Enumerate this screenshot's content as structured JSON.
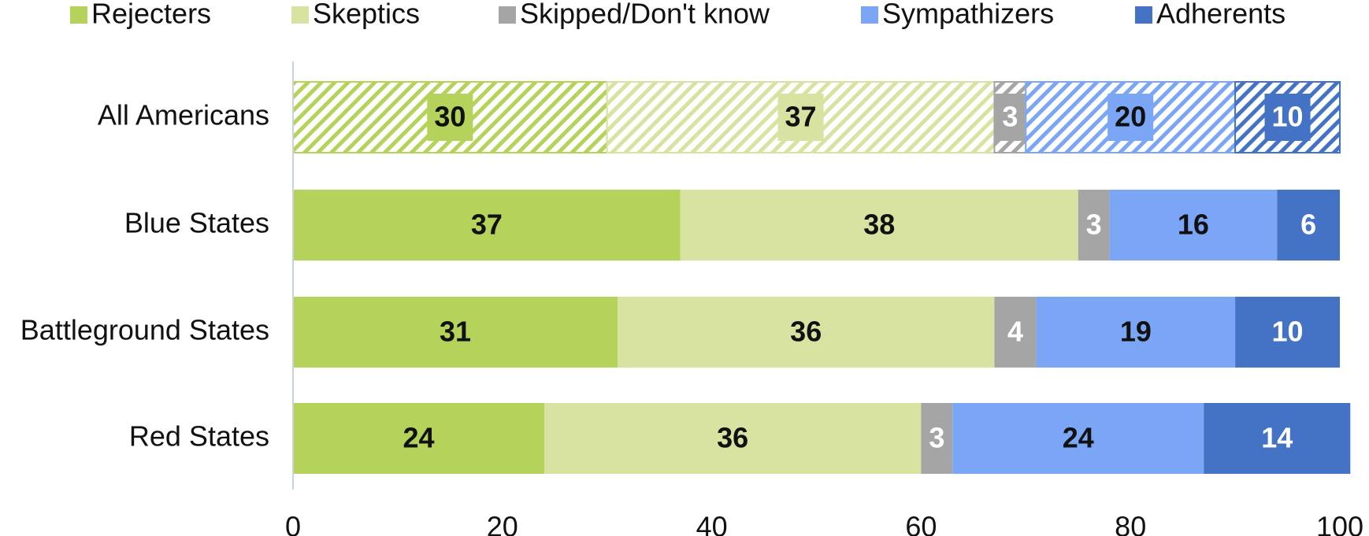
{
  "chart_data": {
    "type": "stacked_bar_horizontal",
    "categories": [
      "All Americans",
      "Blue States",
      "Battleground States",
      "Red States"
    ],
    "hatched": [
      true,
      false,
      false,
      false
    ],
    "series": [
      {
        "name": "Rejecters",
        "color": "#b5d25a",
        "label_color": "#111111",
        "values": [
          30,
          37,
          31,
          24
        ]
      },
      {
        "name": "Skeptics",
        "color": "#d9e3a1",
        "label_color": "#111111",
        "values": [
          37,
          38,
          36,
          36
        ]
      },
      {
        "name": "Skipped/Don't know",
        "color": "#a5a5a5",
        "label_color": "#ffffff",
        "values": [
          3,
          3,
          4,
          3
        ]
      },
      {
        "name": "Sympathizers",
        "color": "#7aa6f5",
        "label_color": "#111111",
        "values": [
          20,
          16,
          19,
          24
        ]
      },
      {
        "name": "Adherents",
        "color": "#4472c4",
        "label_color": "#ffffff",
        "values": [
          10,
          6,
          10,
          14
        ]
      }
    ],
    "xlim": [
      0,
      100
    ],
    "xticks": [
      0,
      20,
      40,
      60,
      80,
      100
    ],
    "legend": "top"
  }
}
